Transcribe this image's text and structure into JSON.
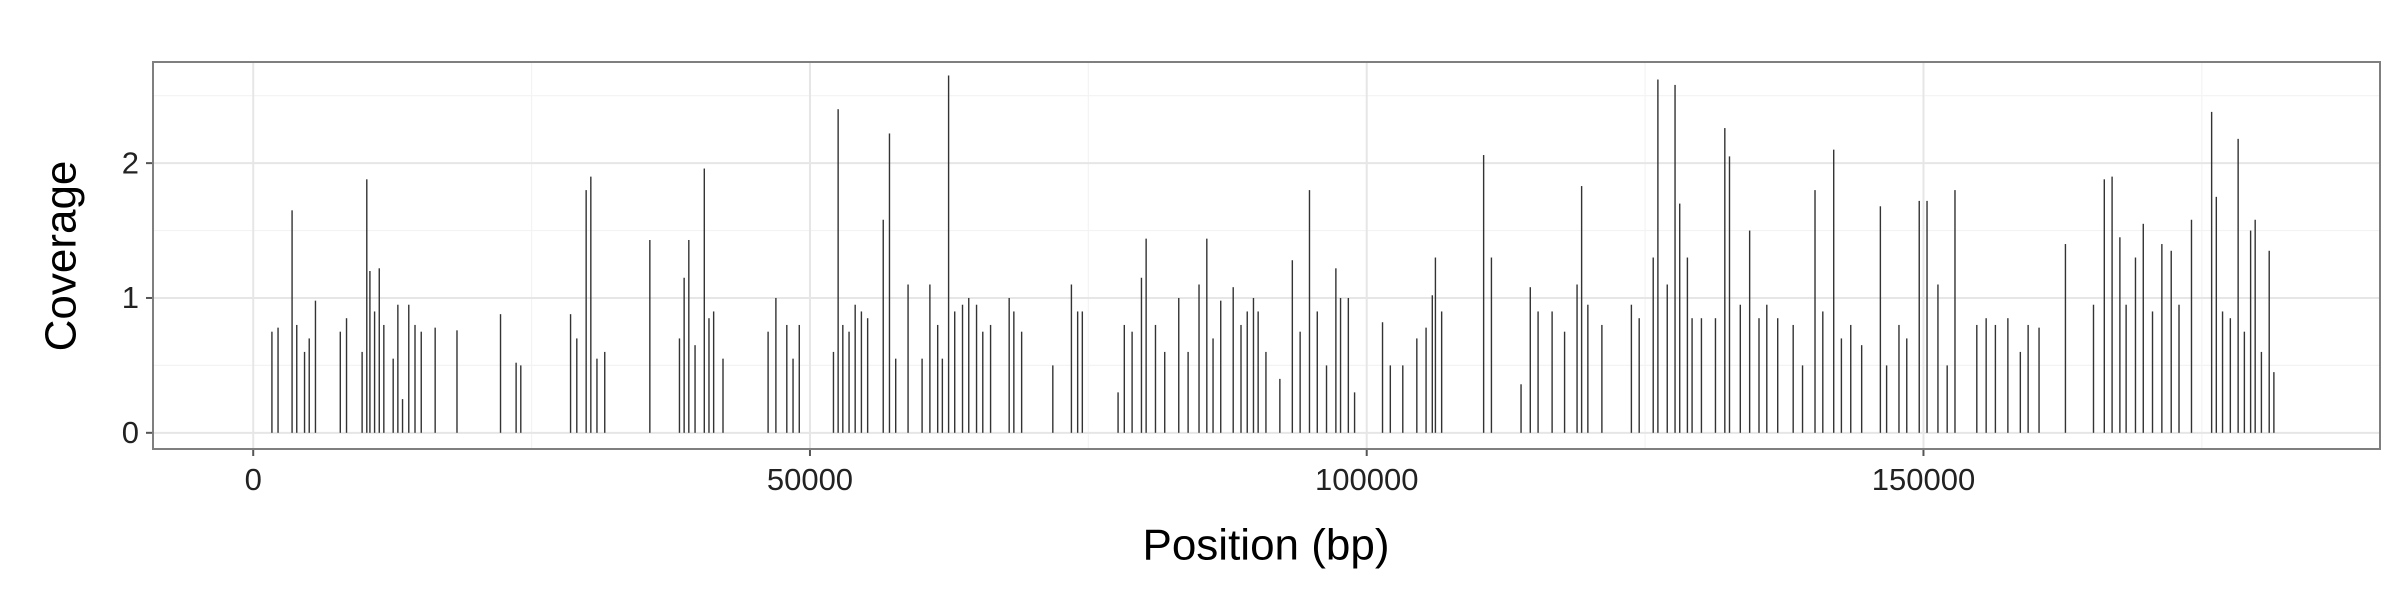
{
  "chart_data": {
    "type": "bar",
    "x_label": "Position (bp)",
    "y_label": "Coverage",
    "color": "#333333",
    "grid": true,
    "xlim": [
      -9000,
      191000
    ],
    "ylim": [
      -0.12,
      2.75
    ],
    "xticks": [
      0,
      50000,
      100000,
      150000
    ],
    "yticks": [
      0,
      1,
      2
    ],
    "x": [
      1680,
      2230,
      3490,
      3910,
      4610,
      5030,
      5590,
      7820,
      8380,
      9780,
      10200,
      10480,
      10900,
      11320,
      11730,
      12570,
      12990,
      13410,
      13970,
      14530,
      15090,
      16340,
      18300,
      22210,
      23610,
      24030,
      28500,
      29060,
      29900,
      30320,
      30870,
      31570,
      35620,
      38280,
      38700,
      39120,
      39680,
      40510,
      40930,
      41350,
      42190,
      46240,
      46940,
      47920,
      48480,
      49040,
      52110,
      52530,
      52950,
      53510,
      54060,
      54620,
      55180,
      56580,
      57140,
      57700,
      58810,
      60070,
      60770,
      61470,
      61890,
      62450,
      63000,
      63700,
      64260,
      64960,
      65520,
      66220,
      67890,
      68310,
      69010,
      71810,
      73480,
      74040,
      74460,
      77670,
      78230,
      78930,
      79770,
      80190,
      81030,
      81860,
      83120,
      83960,
      84940,
      85640,
      86200,
      86890,
      88010,
      88710,
      89270,
      89830,
      90250,
      90950,
      92200,
      93320,
      94020,
      94860,
      95560,
      96390,
      97230,
      97650,
      98350,
      98910,
      101420,
      102120,
      103240,
      104500,
      105330,
      105890,
      106170,
      106730,
      110500,
      111200,
      113860,
      114690,
      115390,
      116650,
      117770,
      118890,
      119300,
      119860,
      121120,
      123770,
      124470,
      125730,
      126150,
      126990,
      127690,
      128110,
      128800,
      129220,
      130060,
      131320,
      132160,
      132580,
      133550,
      134390,
      135230,
      135930,
      136910,
      138300,
      139140,
      140260,
      140960,
      141940,
      142630,
      143470,
      144450,
      146130,
      146690,
      147800,
      148500,
      149620,
      150320,
      151300,
      152130,
      152830,
      154790,
      155630,
      156460,
      157580,
      158700,
      159400,
      160380,
      162750,
      165270,
      166240,
      166940,
      167640,
      168200,
      169040,
      169740,
      170570,
      171410,
      172250,
      172950,
      174070,
      175880,
      176300,
      176860,
      177560,
      178260,
      178820,
      179380,
      179790,
      180350,
      181050,
      181470
    ],
    "values": [
      0.75,
      0.78,
      1.65,
      0.8,
      0.6,
      0.7,
      0.98,
      0.75,
      0.85,
      0.6,
      1.88,
      1.2,
      0.9,
      1.22,
      0.8,
      0.55,
      0.95,
      0.25,
      0.95,
      0.8,
      0.75,
      0.78,
      0.76,
      0.88,
      0.52,
      0.5,
      0.88,
      0.7,
      1.8,
      1.9,
      0.55,
      0.6,
      1.43,
      0.7,
      1.15,
      1.43,
      0.65,
      1.96,
      0.85,
      0.9,
      0.55,
      0.75,
      1.0,
      0.8,
      0.55,
      0.8,
      0.6,
      2.4,
      0.8,
      0.75,
      0.95,
      0.9,
      0.85,
      1.58,
      2.22,
      0.55,
      1.1,
      0.55,
      1.1,
      0.8,
      0.55,
      2.65,
      0.9,
      0.95,
      1.0,
      0.95,
      0.75,
      0.8,
      1.0,
      0.9,
      0.75,
      0.5,
      1.1,
      0.9,
      0.9,
      0.3,
      0.8,
      0.75,
      1.15,
      1.44,
      0.8,
      0.6,
      1.0,
      0.6,
      1.1,
      1.44,
      0.7,
      0.98,
      1.08,
      0.8,
      0.9,
      1.0,
      0.9,
      0.6,
      0.4,
      1.28,
      0.75,
      1.8,
      0.9,
      0.5,
      1.22,
      1.0,
      1.0,
      0.3,
      0.82,
      0.5,
      0.5,
      0.7,
      0.78,
      1.02,
      1.3,
      0.9,
      2.06,
      1.3,
      0.36,
      1.08,
      0.9,
      0.9,
      0.75,
      1.1,
      1.83,
      0.95,
      0.8,
      0.95,
      0.85,
      1.3,
      2.62,
      1.1,
      2.58,
      1.7,
      1.3,
      0.85,
      0.85,
      0.85,
      2.26,
      2.05,
      0.95,
      1.5,
      0.85,
      0.95,
      0.85,
      0.8,
      0.5,
      1.8,
      0.9,
      2.1,
      0.7,
      0.8,
      0.65,
      1.68,
      0.5,
      0.8,
      0.7,
      1.72,
      1.72,
      1.1,
      0.5,
      1.8,
      0.8,
      0.85,
      0.8,
      0.85,
      0.6,
      0.8,
      0.78,
      1.4,
      0.95,
      1.88,
      1.9,
      1.45,
      0.95,
      1.3,
      1.55,
      0.9,
      1.4,
      1.35,
      0.95,
      1.58,
      2.38,
      1.75,
      0.9,
      0.85,
      2.18,
      0.75,
      1.5,
      1.58,
      0.6,
      1.35,
      0.45
    ]
  }
}
